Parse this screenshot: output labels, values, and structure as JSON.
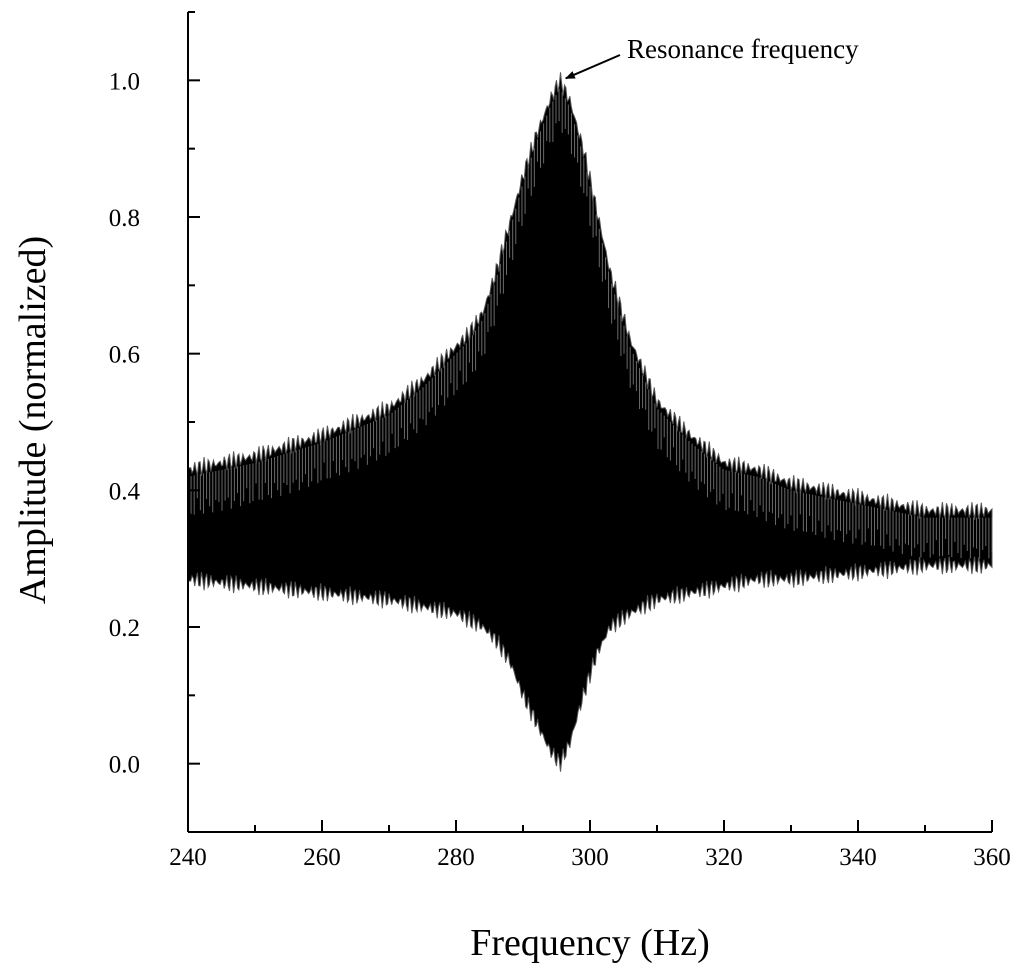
{
  "chart_data": {
    "type": "area",
    "title": "",
    "xlabel": "Frequency (Hz)",
    "ylabel": "Amplitude (normalized)",
    "xlim": [
      240,
      360
    ],
    "ylim": [
      -0.1,
      1.1
    ],
    "x_ticks": [
      240,
      260,
      280,
      300,
      320,
      340,
      360
    ],
    "x_tick_labels": [
      "240",
      "260",
      "280",
      "300",
      "320",
      "340",
      "360"
    ],
    "y_ticks": [
      0.0,
      0.2,
      0.4,
      0.6,
      0.8,
      1.0
    ],
    "y_tick_labels": [
      "0.0",
      "0.2",
      "0.4",
      "0.6",
      "0.8",
      "1.0"
    ],
    "grid": false,
    "legend": "none",
    "colors": {
      "fill": "#000000",
      "edge": "#555555",
      "axis": "#000000"
    },
    "series": [
      {
        "x": [
          240,
          250,
          260,
          270,
          275,
          280,
          282,
          284,
          286,
          288,
          290,
          292,
          294,
          295.5,
          297,
          299,
          301,
          303,
          306,
          310,
          315,
          320,
          325,
          330,
          340,
          350,
          360
        ],
        "upper": [
          0.43,
          0.45,
          0.48,
          0.52,
          0.56,
          0.61,
          0.63,
          0.66,
          0.72,
          0.79,
          0.86,
          0.92,
          0.97,
          1.0,
          0.97,
          0.9,
          0.81,
          0.72,
          0.62,
          0.53,
          0.48,
          0.44,
          0.43,
          0.41,
          0.39,
          0.37,
          0.37
        ],
        "lower": [
          0.27,
          0.26,
          0.25,
          0.24,
          0.23,
          0.22,
          0.21,
          0.2,
          0.18,
          0.15,
          0.1,
          0.06,
          0.02,
          0.0,
          0.03,
          0.1,
          0.16,
          0.2,
          0.22,
          0.24,
          0.25,
          0.26,
          0.27,
          0.27,
          0.28,
          0.29,
          0.29
        ]
      }
    ],
    "annotations": [
      {
        "text": "Resonance frequency",
        "x": 295.5,
        "y": 1.0
      }
    ]
  }
}
